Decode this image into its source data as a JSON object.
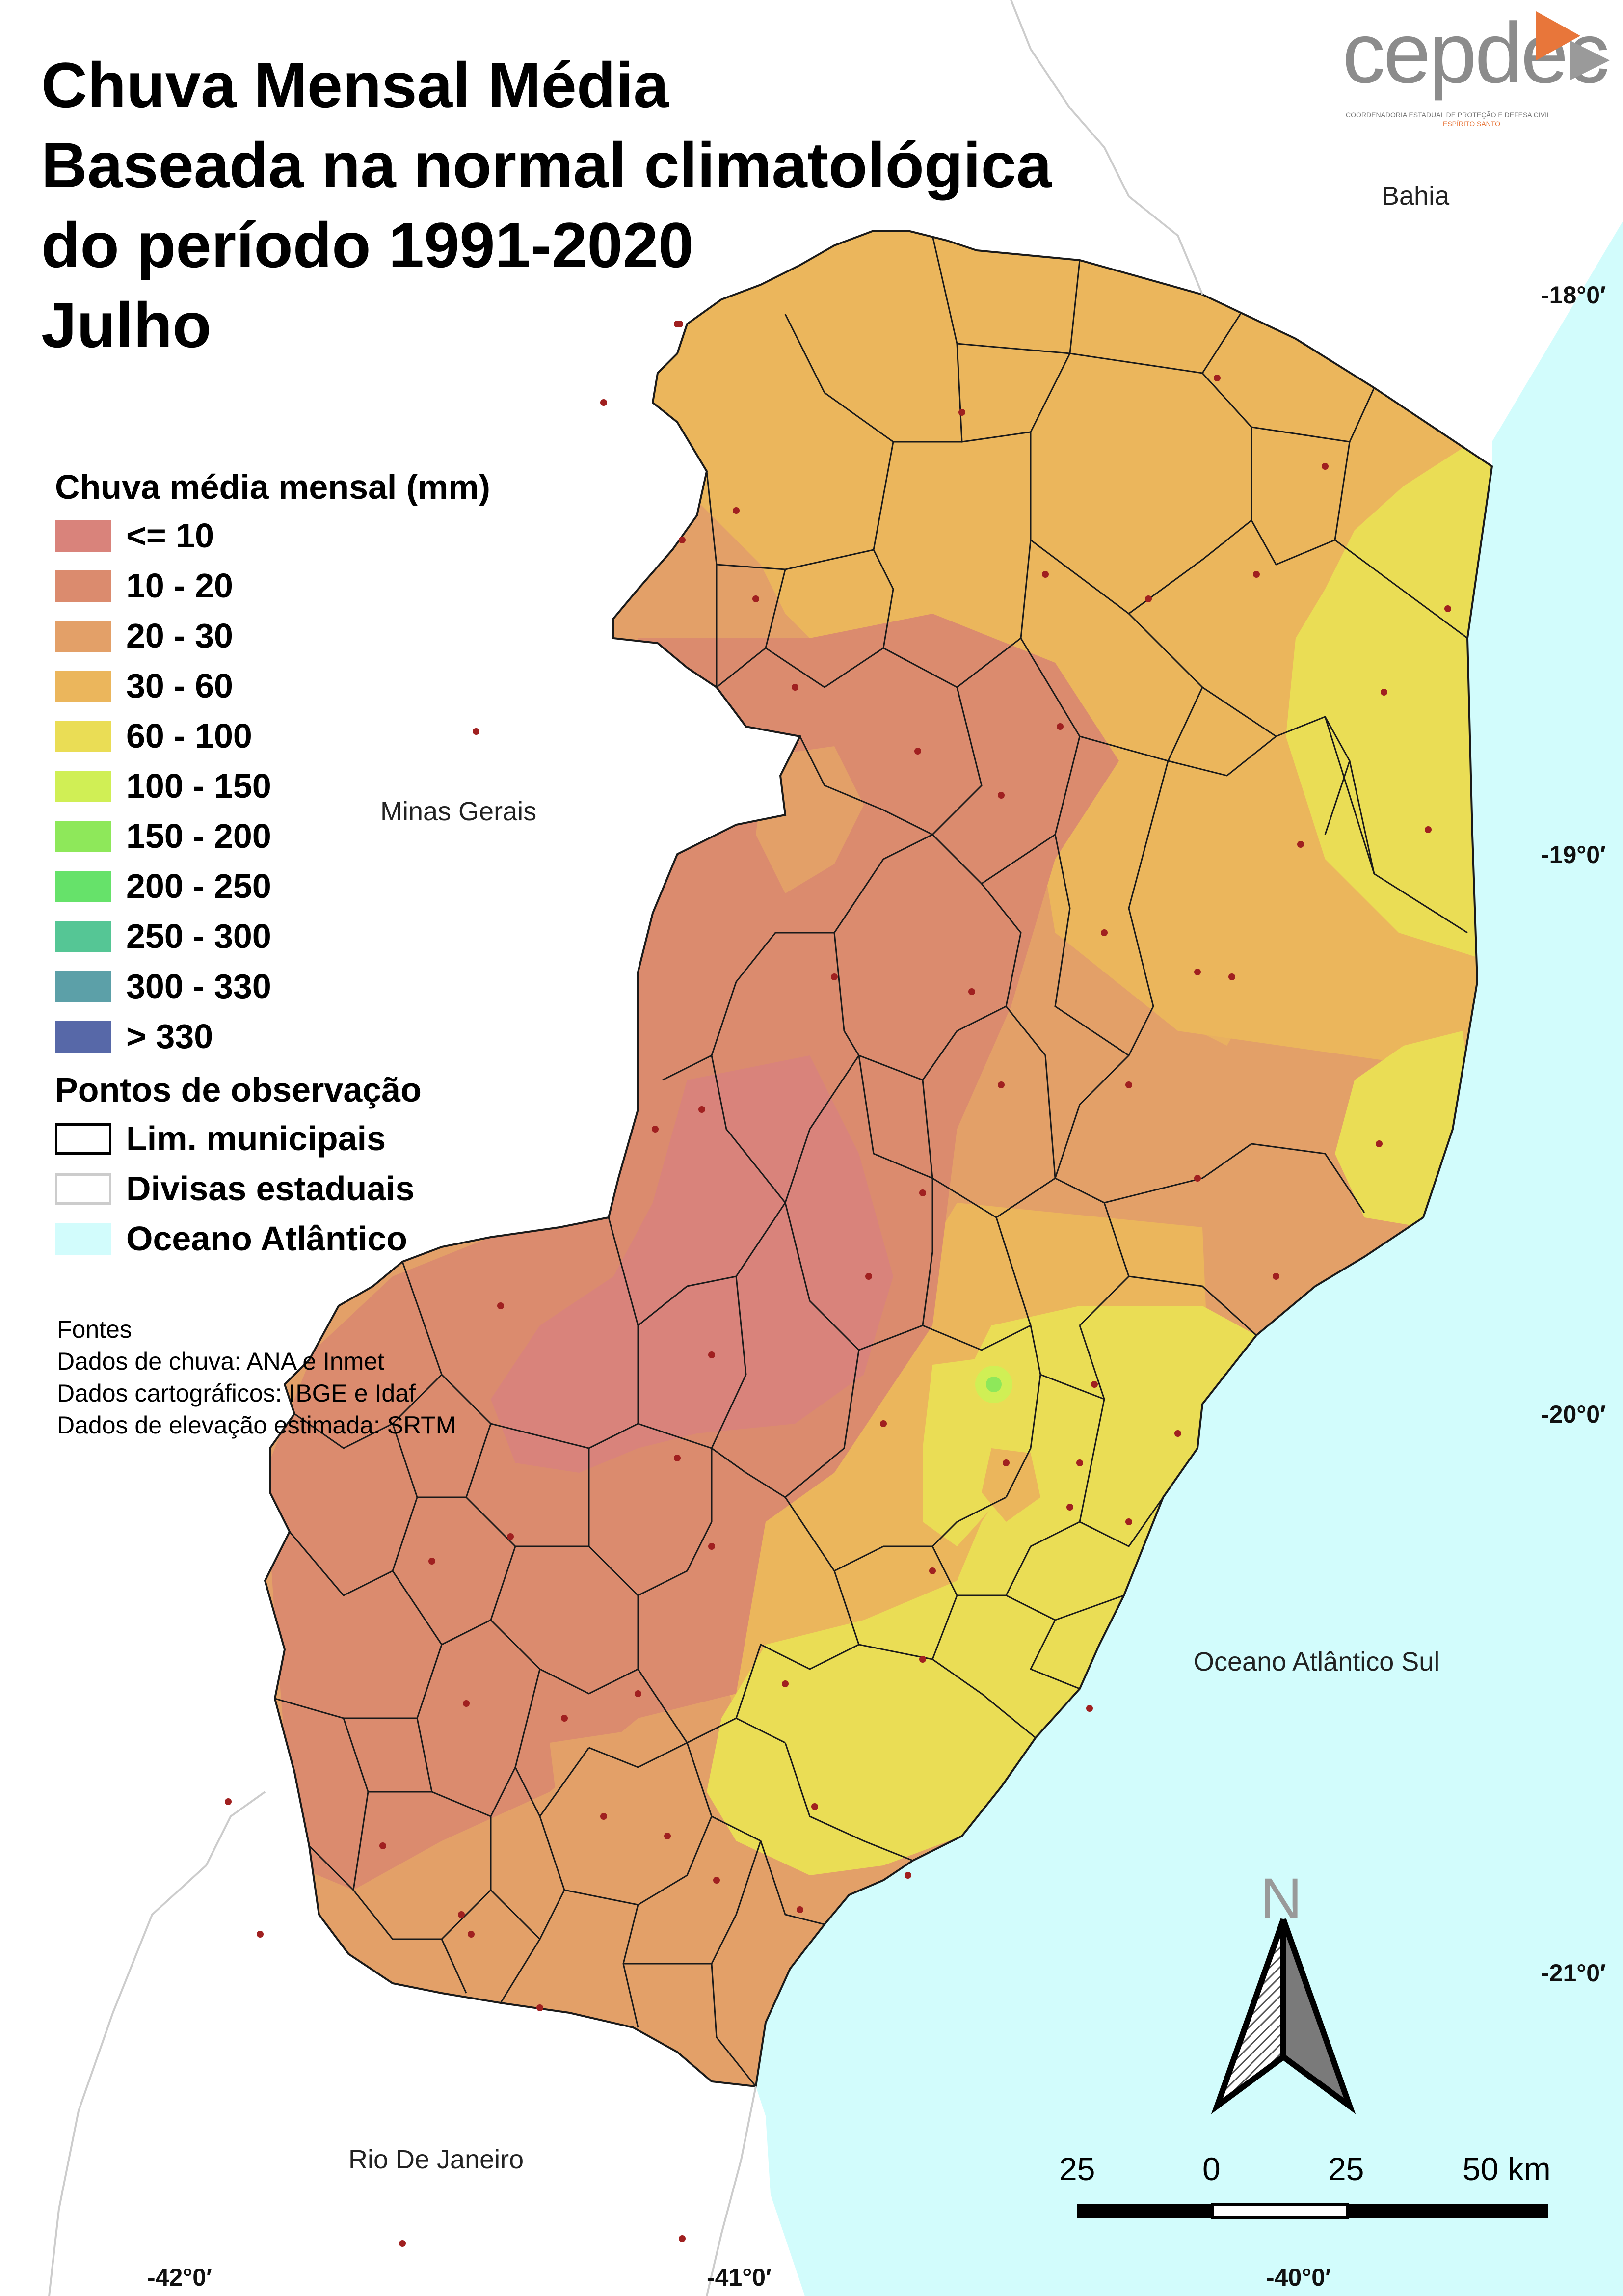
{
  "title": {
    "line1": "Chuva Mensal Média",
    "line2": "Baseada na normal climatológica",
    "line3": "do período 1991-2020",
    "line4": "Julho"
  },
  "logo": {
    "name": "cepdec",
    "subtitle": "COORDENADORIA ESTADUAL DE PROTEÇÃO E DEFESA CIVIL",
    "state": "ESPÍRITO SANTO"
  },
  "legend": {
    "rain_title": "Chuva média mensal (mm)",
    "classes": [
      {
        "label": "<= 10",
        "color": "#d9837b"
      },
      {
        "label": "10 - 20",
        "color": "#db8b6e"
      },
      {
        "label": "20 - 30",
        "color": "#e3a068"
      },
      {
        "label": "30 - 60",
        "color": "#ebb65c"
      },
      {
        "label": "60 - 100",
        "color": "#eadd55"
      },
      {
        "label": "100 - 150",
        "color": "#d0ef55"
      },
      {
        "label": "150 - 200",
        "color": "#8ee85a"
      },
      {
        "label": "200 - 250",
        "color": "#66e26a"
      },
      {
        "label": "250 - 300",
        "color": "#55c695"
      },
      {
        "label": "300 - 330",
        "color": "#5ca0a8"
      },
      {
        "label": "> 330",
        "color": "#5768a8"
      }
    ],
    "points_title": "Pontos de observação",
    "items": [
      {
        "label": "Lim. municipais",
        "fill": "#ffffff",
        "stroke": "#000000"
      },
      {
        "label": "Divisas estaduais",
        "fill": "#ffffff",
        "stroke": "#cccccc"
      },
      {
        "label": "Oceano Atlântico",
        "fill": "#d2fcfc",
        "stroke": "#d2fcfc"
      }
    ]
  },
  "sources": {
    "heading": "Fontes",
    "rain": "Dados de chuva: ANA e Inmet",
    "carto": "Dados cartográficos: IBGE e Idaf",
    "elevation": "Dados de elevação estimada: SRTM"
  },
  "places": {
    "bahia": "Bahia",
    "minas": "Minas Gerais",
    "ocean": "Oceano Atlântico Sul",
    "rio": "Rio De Janeiro"
  },
  "coords": {
    "lat1": "-18°0′",
    "lat2": "-19°0′",
    "lat3": "-20°0′",
    "lat4": "-21°0′",
    "lon1": "-42°0′",
    "lon2": "-41°0′",
    "lon3": "-40°0′"
  },
  "north": "N",
  "scale": {
    "labels": [
      "25",
      "0",
      "25",
      "50 km"
    ]
  },
  "colors": {
    "ocean": "#d2fcfc",
    "state_border": "#cccccc",
    "municipal_border": "#1a1a1a",
    "station_marker": "#a02020"
  }
}
